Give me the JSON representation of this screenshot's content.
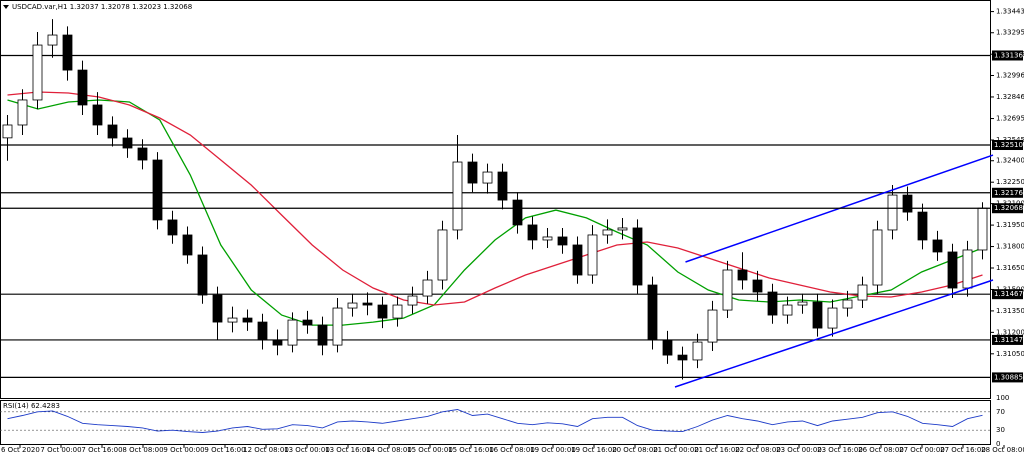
{
  "chart_data": {
    "type": "candlestick",
    "title": "USDCAD.var,H1  1.32037 1.32078 1.32023 1.32068",
    "ohlc": [
      [
        1.3256,
        1.3272,
        1.324,
        1.3265
      ],
      [
        1.3265,
        1.329,
        1.3258,
        1.32825
      ],
      [
        1.32825,
        1.333,
        1.3276,
        1.33209
      ],
      [
        1.33209,
        1.3339,
        1.3312,
        1.33279
      ],
      [
        1.33279,
        1.3334,
        1.3296,
        1.33034
      ],
      [
        1.33034,
        1.331,
        1.3272,
        1.3279
      ],
      [
        1.3279,
        1.3288,
        1.3258,
        1.3265
      ],
      [
        1.3265,
        1.3271,
        1.325,
        1.32559
      ],
      [
        1.32559,
        1.3262,
        1.3242,
        1.32489
      ],
      [
        1.32489,
        1.3255,
        1.3234,
        1.32405
      ],
      [
        1.32405,
        1.3246,
        1.3192,
        1.31986
      ],
      [
        1.31986,
        1.3205,
        1.3182,
        1.31881
      ],
      [
        1.31881,
        1.3194,
        1.3168,
        1.31741
      ],
      [
        1.31741,
        1.318,
        1.314,
        1.31461
      ],
      [
        1.31461,
        1.3152,
        1.3115,
        1.31272
      ],
      [
        1.31272,
        1.3138,
        1.312,
        1.313
      ],
      [
        1.313,
        1.3136,
        1.3121,
        1.31272
      ],
      [
        1.31272,
        1.3133,
        1.3108,
        1.31146
      ],
      [
        1.31146,
        1.3122,
        1.3104,
        1.31111
      ],
      [
        1.31111,
        1.3134,
        1.3106,
        1.31286
      ],
      [
        1.31286,
        1.3135,
        1.3119,
        1.31251
      ],
      [
        1.31251,
        1.3131,
        1.3104,
        1.31111
      ],
      [
        1.31111,
        1.3144,
        1.3106,
        1.3137
      ],
      [
        1.3137,
        1.3147,
        1.3131,
        1.31405
      ],
      [
        1.31405,
        1.3148,
        1.3132,
        1.31391
      ],
      [
        1.31391,
        1.3145,
        1.3123,
        1.313
      ],
      [
        1.313,
        1.3145,
        1.3124,
        1.31391
      ],
      [
        1.31391,
        1.3152,
        1.3133,
        1.31454
      ],
      [
        1.31454,
        1.3163,
        1.314,
        1.31566
      ],
      [
        1.31566,
        1.3198,
        1.315,
        1.31916
      ],
      [
        1.31916,
        1.3258,
        1.3185,
        1.32391
      ],
      [
        1.32391,
        1.3245,
        1.3218,
        1.32244
      ],
      [
        1.32244,
        1.3238,
        1.3217,
        1.32321
      ],
      [
        1.32321,
        1.3238,
        1.3206,
        1.32125
      ],
      [
        1.32125,
        1.3218,
        1.3189,
        1.31951
      ],
      [
        1.31951,
        1.3201,
        1.3178,
        1.31846
      ],
      [
        1.31846,
        1.3193,
        1.3179,
        1.31867
      ],
      [
        1.31867,
        1.3193,
        1.3175,
        1.31811
      ],
      [
        1.31811,
        1.3187,
        1.3154,
        1.31601
      ],
      [
        1.31601,
        1.3195,
        1.3154,
        1.31881
      ],
      [
        1.31881,
        1.3199,
        1.3182,
        1.31916
      ],
      [
        1.31916,
        1.32,
        1.3185,
        1.3193
      ],
      [
        1.3193,
        1.3199,
        1.3147,
        1.31531
      ],
      [
        1.31531,
        1.3159,
        1.3108,
        1.31146
      ],
      [
        1.31146,
        1.3121,
        1.3098,
        1.31041
      ],
      [
        1.31041,
        1.311,
        1.3087,
        1.31007
      ],
      [
        1.31007,
        1.3119,
        1.3095,
        1.31132
      ],
      [
        1.31132,
        1.3142,
        1.3107,
        1.31356
      ],
      [
        1.31356,
        1.317,
        1.313,
        1.31636
      ],
      [
        1.31636,
        1.3176,
        1.315,
        1.31566
      ],
      [
        1.31566,
        1.3163,
        1.3142,
        1.31482
      ],
      [
        1.31482,
        1.3154,
        1.3126,
        1.31321
      ],
      [
        1.31321,
        1.3145,
        1.3126,
        1.31391
      ],
      [
        1.31391,
        1.3147,
        1.3133,
        1.31412
      ],
      [
        1.31412,
        1.3147,
        1.3117,
        1.3123
      ],
      [
        1.3123,
        1.3143,
        1.3117,
        1.3137
      ],
      [
        1.3137,
        1.3149,
        1.3131,
        1.31426
      ],
      [
        1.31426,
        1.3159,
        1.3137,
        1.31531
      ],
      [
        1.31531,
        1.3198,
        1.3147,
        1.31916
      ],
      [
        1.31916,
        1.3223,
        1.3185,
        1.3216
      ],
      [
        1.3216,
        1.3222,
        1.3198,
        1.32041
      ],
      [
        1.32041,
        1.321,
        1.3178,
        1.31846
      ],
      [
        1.31846,
        1.3191,
        1.317,
        1.31762
      ],
      [
        1.31762,
        1.3182,
        1.3144,
        1.3151
      ],
      [
        1.3151,
        1.3184,
        1.3145,
        1.31776
      ],
      [
        1.31776,
        1.3211,
        1.3171,
        1.32068
      ]
    ],
    "ylim": [
      1.30741,
      1.33524
    ],
    "yticks": [
      1.33443,
      1.33295,
      1.33145,
      1.32996,
      1.32846,
      1.32695,
      1.32545,
      {
        "value": 1.324,
        "label": "1.32400"
      },
      {
        "value": 1.3225,
        "label": "1.32250"
      },
      {
        "value": 1.321,
        "label": "1.32100"
      },
      {
        "value": 1.3195,
        "label": "1.31950"
      },
      {
        "value": 1.318,
        "label": "1.31800"
      },
      {
        "value": 1.3165,
        "label": "1.31650"
      },
      {
        "value": 1.315,
        "label": "1.31500"
      },
      {
        "value": 1.3135,
        "label": "1.31350"
      },
      {
        "value": 1.312,
        "label": "1.31200"
      },
      {
        "value": 1.3105,
        "label": "1.31050"
      }
    ],
    "levels": [
      1.33136,
      {
        "value": 1.3251,
        "label": "1.32510"
      },
      1.32176,
      1.31467,
      1.31147,
      1.30885
    ],
    "current_price": 1.32068,
    "moving_averages": [
      {
        "color": "#00a000",
        "values": [
          1.32825,
          1.32762,
          1.32811,
          1.32825,
          1.32811,
          1.32685,
          1.323,
          1.31811,
          1.31496,
          1.31321,
          1.31251,
          1.31251,
          1.31272,
          1.313,
          1.31391,
          1.31636,
          1.31846,
          1.32,
          1.32055,
          1.32,
          1.31902,
          1.31811,
          1.31622,
          1.31496,
          1.31426,
          1.31412,
          1.31426,
          1.31412,
          1.31454,
          1.31496,
          1.31622,
          1.31706,
          1.3179
        ]
      },
      {
        "color": "#e0203a",
        "values": [
          1.3286,
          1.32881,
          1.32874,
          1.32846,
          1.3279,
          1.32699,
          1.3258,
          1.32405,
          1.3223,
          1.3202,
          1.31811,
          1.31636,
          1.3151,
          1.31426,
          1.31391,
          1.31412,
          1.3151,
          1.31601,
          1.31671,
          1.31741,
          1.31811,
          1.31832,
          1.3179,
          1.3172,
          1.3165,
          1.3158,
          1.31531,
          1.31482,
          1.31454,
          1.31447,
          1.31482,
          1.31531,
          1.31601
        ]
      }
    ],
    "trendlines": [
      {
        "color": "#0000ff",
        "start": [
          45.2,
          1.31692
        ],
        "end": [
          65.7,
          1.3244
        ]
      },
      {
        "color": "#0000ff",
        "start": [
          44.5,
          1.30818
        ],
        "end": [
          65.7,
          1.31566
        ]
      }
    ],
    "rsi": {
      "label": "RSI(14) 62.4283",
      "color": "#1e3cc8",
      "ylim": [
        0,
        100
      ],
      "yticks": [
        100,
        70,
        30,
        0
      ],
      "values": [
        55,
        62,
        70,
        72,
        60,
        45,
        42,
        40,
        38,
        35,
        28,
        30,
        27,
        25,
        28,
        35,
        38,
        32,
        33,
        42,
        40,
        35,
        48,
        50,
        48,
        45,
        50,
        55,
        60,
        70,
        75,
        62,
        65,
        55,
        45,
        42,
        46,
        44,
        38,
        55,
        58,
        58,
        40,
        30,
        28,
        27,
        38,
        52,
        62,
        55,
        50,
        42,
        48,
        50,
        40,
        50,
        54,
        58,
        68,
        70,
        60,
        45,
        42,
        38,
        55,
        62.4283
      ]
    },
    "x_labels": [
      "6 Oct 2020",
      "7 Oct 00:00",
      "7 Oct 16:00",
      "8 Oct 08:00",
      "9 Oct 00:00",
      "9 Oct 16:00",
      "12 Oct 08:00",
      "13 Oct 00:00",
      "13 Oct 16:00",
      "14 Oct 08:00",
      "15 Oct 00:00",
      "15 Oct 16:00",
      "16 Oct 08:00",
      "19 Oct 00:00",
      "19 Oct 16:00",
      "20 Oct 08:00",
      "21 Oct 00:00",
      "21 Oct 16:00",
      "22 Oct 08:00",
      "23 Oct 00:00",
      "23 Oct 16:00",
      "26 Oct 08:00",
      "27 Oct 00:00",
      "27 Oct 16:00",
      "28 Oct 08:00"
    ]
  }
}
